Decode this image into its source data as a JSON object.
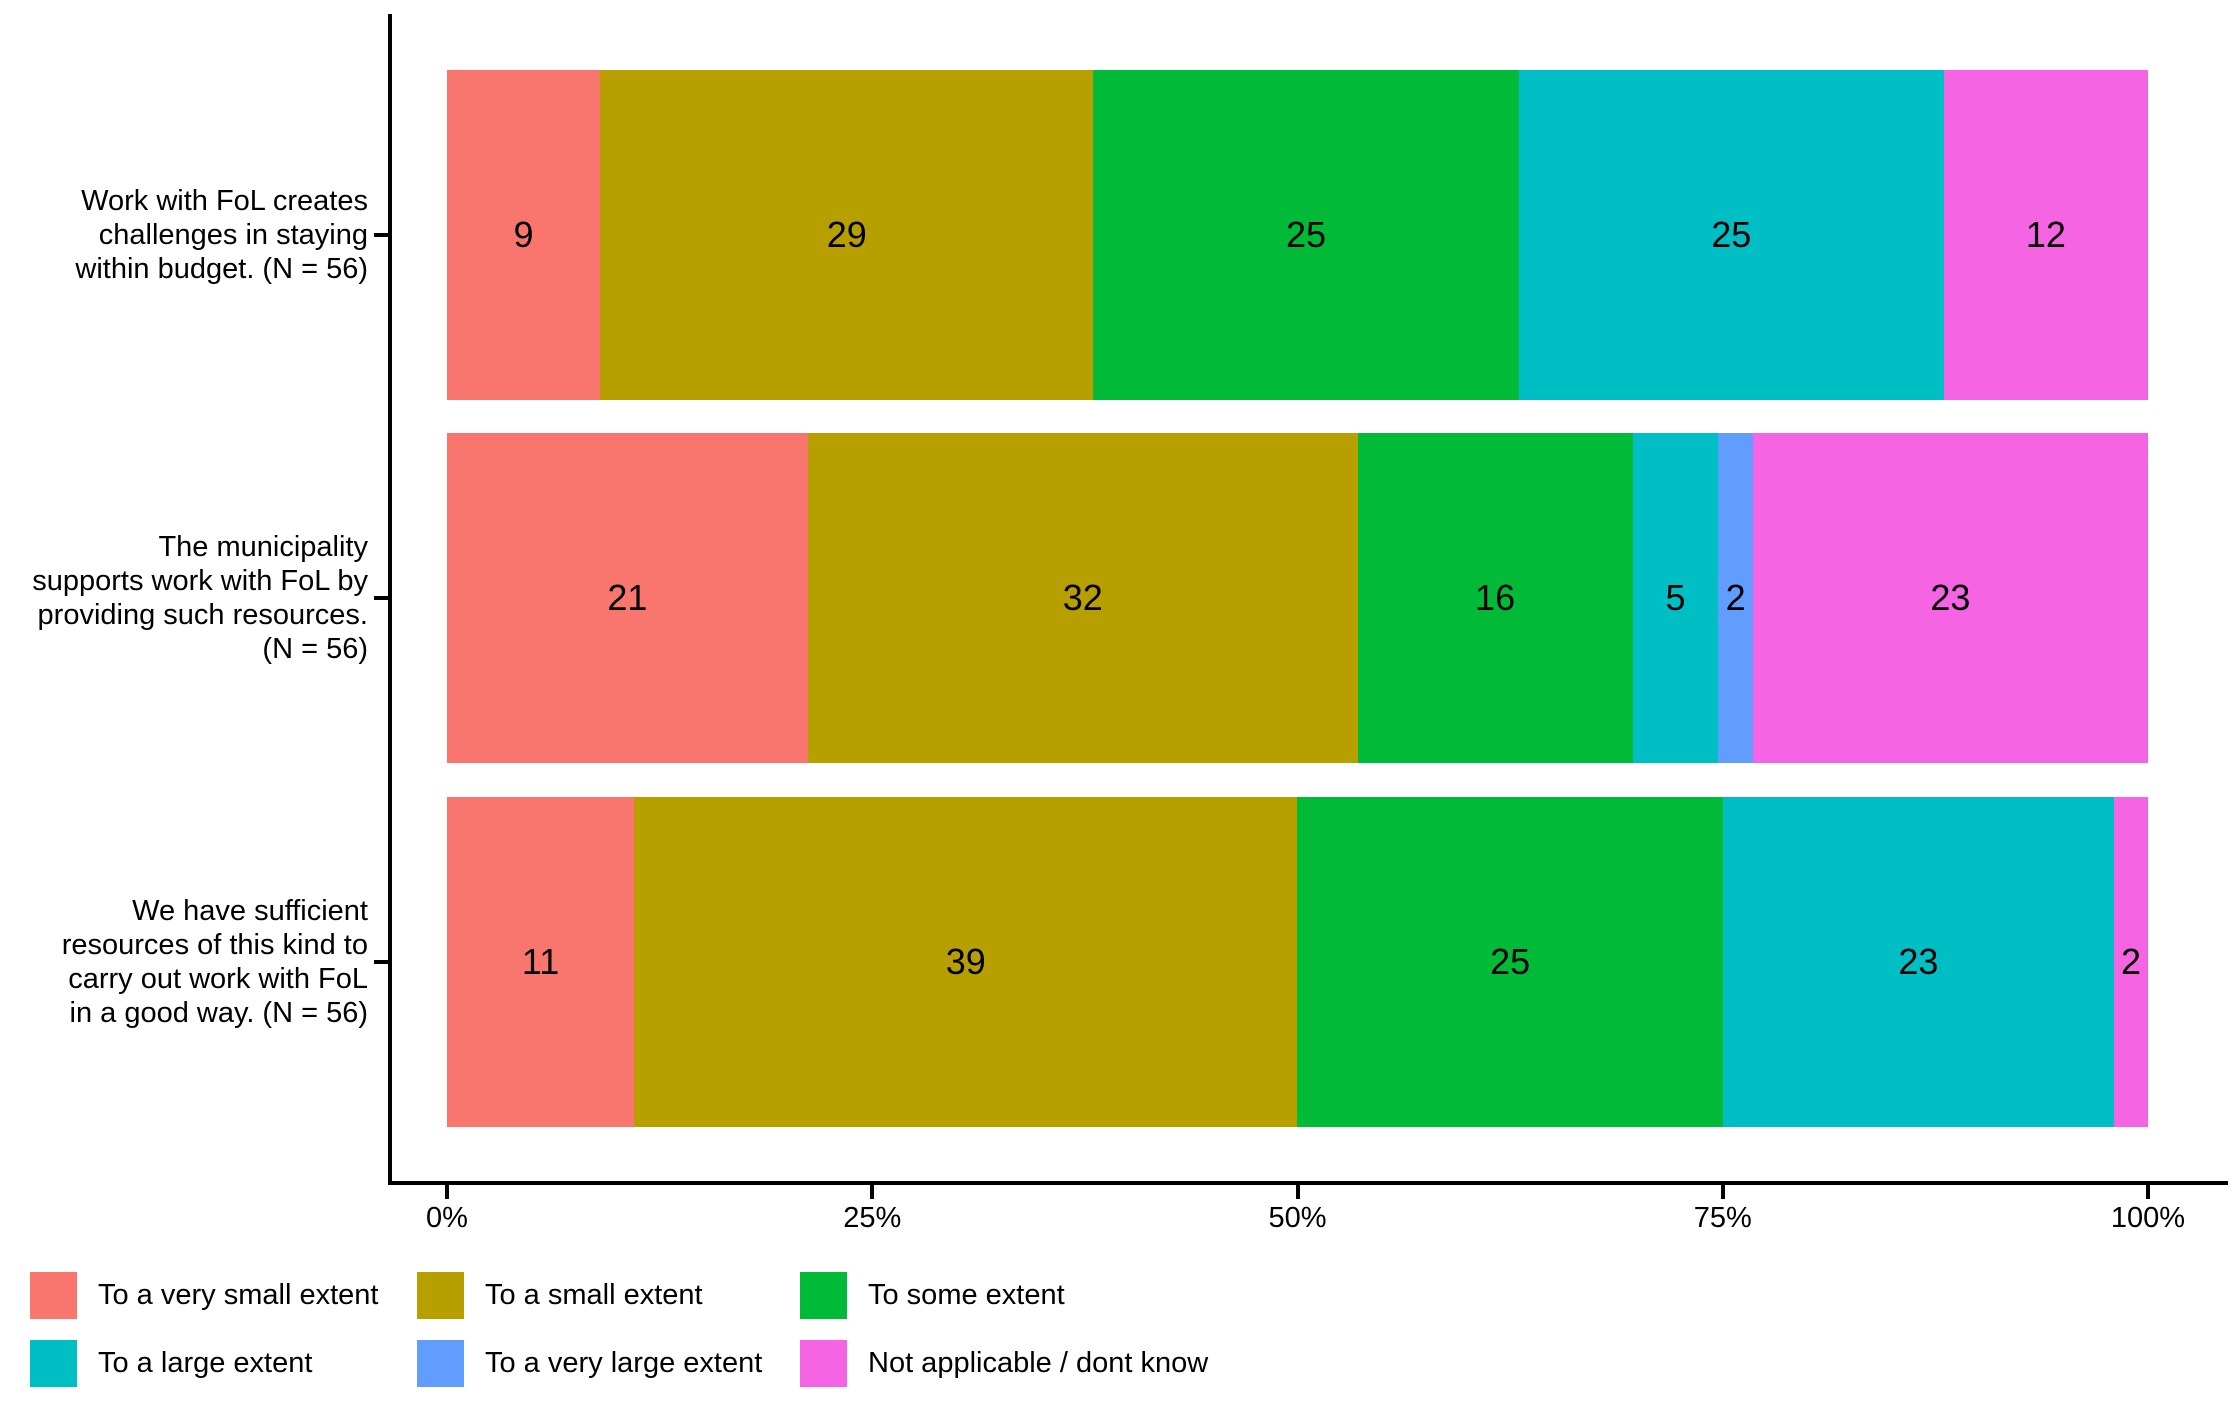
{
  "chart_data": {
    "type": "bar",
    "stacked": true,
    "orientation": "horizontal",
    "units": "percent",
    "title": "",
    "xlabel": "",
    "ylabel": "",
    "grid": false,
    "legend_position": "bottom",
    "x_axis": {
      "tick_values": [
        0,
        25,
        50,
        75,
        100
      ],
      "tick_labels": [
        "0%",
        "25%",
        "50%",
        "75%",
        "100%"
      ],
      "range": [
        0,
        100
      ]
    },
    "legend": [
      {
        "label": "To a very small extent",
        "color": "#F8766D"
      },
      {
        "label": "To a small extent",
        "color": "#B79F00"
      },
      {
        "label": "To some extent",
        "color": "#00BA38"
      },
      {
        "label": "To a large extent",
        "color": "#00BFC4"
      },
      {
        "label": "To a very large extent",
        "color": "#619CFF"
      },
      {
        "label": "Not applicable / dont know",
        "color": "#F564E3"
      }
    ],
    "categories": [
      {
        "label": "Work with FoL creates challenges in staying within budget. (N = 56)",
        "label_lines": [
          "Work with FoL creates",
          "challenges in staying",
          "within budget. (N = 56)"
        ],
        "segments": [
          {
            "series": "To a very small extent",
            "value": 9
          },
          {
            "series": "To a small extent",
            "value": 29
          },
          {
            "series": "To some extent",
            "value": 25
          },
          {
            "series": "To a large extent",
            "value": 25
          },
          {
            "series": "Not applicable / dont know",
            "value": 12
          }
        ]
      },
      {
        "label": "The municipality supports work with FoL by providing such resources. (N = 56)",
        "label_lines": [
          "The municipality",
          "supports work with FoL by",
          "providing such resources.",
          "(N = 56)"
        ],
        "segments": [
          {
            "series": "To a very small extent",
            "value": 21
          },
          {
            "series": "To a small extent",
            "value": 32
          },
          {
            "series": "To some extent",
            "value": 16
          },
          {
            "series": "To a large extent",
            "value": 5
          },
          {
            "series": "To a very large extent",
            "value": 2
          },
          {
            "series": "Not applicable / dont know",
            "value": 23
          }
        ]
      },
      {
        "label": "We have sufficient resources of this kind to carry out work with FoL in a good way. (N = 56)",
        "label_lines": [
          "We have sufficient",
          "resources of this kind to",
          "carry out work with FoL",
          "in a good way. (N = 56)"
        ],
        "segments": [
          {
            "series": "To a very small extent",
            "value": 11
          },
          {
            "series": "To a small extent",
            "value": 39
          },
          {
            "series": "To some extent",
            "value": 25
          },
          {
            "series": "To a large extent",
            "value": 23
          },
          {
            "series": "Not applicable / dont know",
            "value": 2
          }
        ]
      }
    ]
  }
}
